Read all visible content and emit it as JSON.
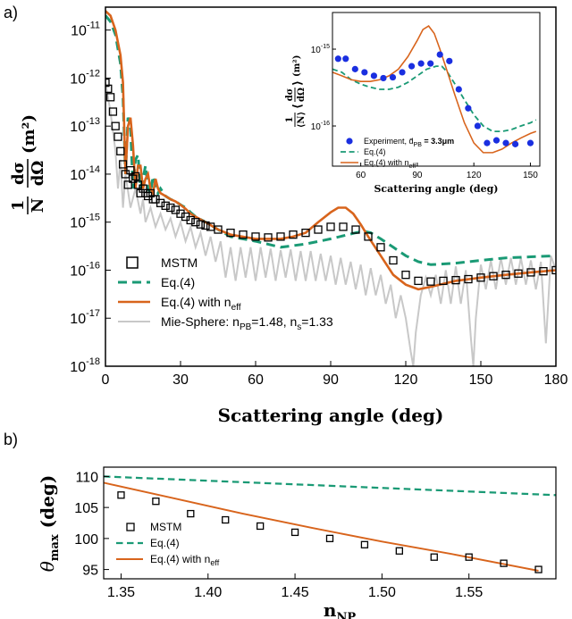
{
  "colors": {
    "mstm": "#000000",
    "eq4": "#1a9a75",
    "eq4_neff": "#d8641c",
    "mie": "#c8c8c8",
    "experiment": "#1a2fe0"
  },
  "panel_labels": [
    "a)",
    "b)"
  ],
  "chart_data": [
    {
      "panel": "a)",
      "type": "line",
      "y_scale": "log",
      "xlabel": "Scattering angle (deg)",
      "ylabel": "1 dσ / N dΩ (m²)",
      "xlim": [
        0,
        180
      ],
      "ylim": [
        1e-18,
        3e-11
      ],
      "xticks": [
        "0",
        "30",
        "60",
        "90",
        "120",
        "150",
        "180"
      ],
      "yticks": [
        {
          "base": "10",
          "exp": "-11",
          "value": 1e-11
        },
        {
          "base": "10",
          "exp": "-12",
          "value": 1e-12
        },
        {
          "base": "10",
          "exp": "-13",
          "value": 1e-13
        },
        {
          "base": "10",
          "exp": "-14",
          "value": 1e-14
        },
        {
          "base": "10",
          "exp": "-15",
          "value": 1e-15
        },
        {
          "base": "10",
          "exp": "-16",
          "value": 1e-16
        },
        {
          "base": "10",
          "exp": "-17",
          "value": 1e-17
        },
        {
          "base": "10",
          "exp": "-18",
          "value": 1e-18
        }
      ],
      "legend": {
        "position": "bottom-left",
        "entries": [
          {
            "label": "MSTM",
            "style": "square-marker"
          },
          {
            "label": "Eq.(4)",
            "style": "dashed"
          },
          {
            "label": "Eq.(4) with n",
            "sub": "eff",
            "style": "solid"
          },
          {
            "label": "Mie-Sphere: n",
            "sub": "PB",
            "rest": "=1.48, n",
            "sub2": "s",
            "rest2": "=1.33",
            "style": "gray"
          }
        ]
      },
      "series": [
        {
          "name": "MSTM",
          "style": "marker",
          "x": [
            0,
            1,
            2,
            3,
            4,
            5,
            6,
            7,
            8,
            9,
            10,
            11,
            12,
            13,
            14,
            15,
            16,
            17,
            18,
            19,
            20,
            22,
            24,
            26,
            28,
            30,
            32,
            34,
            36,
            38,
            40,
            42,
            45,
            50,
            55,
            60,
            65,
            70,
            75,
            80,
            85,
            90,
            95,
            100,
            105,
            110,
            115,
            120,
            125,
            130,
            135,
            140,
            145,
            150,
            155,
            160,
            165,
            170,
            175,
            180
          ],
          "y": [
            8e-13,
            6e-13,
            4e-13,
            2e-13,
            1e-13,
            6e-14,
            3e-14,
            1.6e-14,
            1e-14,
            6e-15,
            1.2e-14,
            8e-15,
            9e-15,
            6e-15,
            4e-15,
            5e-15,
            4e-15,
            3.5e-15,
            4e-15,
            3e-15,
            3e-15,
            2.5e-15,
            2.2e-15,
            2e-15,
            1.8e-15,
            1.5e-15,
            1.3e-15,
            1.1e-15,
            1e-15,
            9e-16,
            8.5e-16,
            8e-16,
            7e-16,
            6e-16,
            5.5e-16,
            5e-16,
            4.8e-16,
            5e-16,
            5.5e-16,
            6e-16,
            7e-16,
            8e-16,
            8e-16,
            7e-16,
            5e-16,
            3e-16,
            1.6e-16,
            8e-17,
            6e-17,
            5.8e-17,
            6e-17,
            6.2e-17,
            6.5e-17,
            7e-17,
            7.5e-17,
            8e-17,
            8.5e-17,
            9e-17,
            9.5e-17,
            1e-16
          ]
        },
        {
          "name": "Eq.(4)",
          "style": "dashed",
          "x": [
            0,
            2,
            4,
            6,
            7,
            8,
            9,
            10,
            11,
            12,
            13,
            14,
            15,
            16,
            17,
            18,
            19,
            20,
            21,
            22,
            24,
            26,
            28,
            30,
            32,
            34,
            36,
            40,
            45,
            50,
            60,
            70,
            80,
            90,
            100,
            103,
            106,
            110,
            115,
            120,
            125,
            130,
            140,
            150,
            160,
            170,
            180
          ],
          "y": [
            2e-11,
            1.5e-11,
            8e-12,
            2e-12,
            4e-13,
            1e-14,
            1.5e-13,
            1e-13,
            5e-15,
            2e-14,
            2.5e-14,
            5e-15,
            8e-15,
            1.5e-14,
            5e-15,
            4e-15,
            9e-15,
            6e-15,
            4e-15,
            5e-15,
            3.5e-15,
            3e-15,
            2.7e-15,
            2.3e-15,
            2e-15,
            1.6e-15,
            1.3e-15,
            1e-15,
            7e-16,
            5e-16,
            4e-16,
            3e-16,
            3.5e-16,
            4.5e-16,
            6e-16,
            6.5e-16,
            6e-16,
            4.5e-16,
            3e-16,
            2e-16,
            1.5e-16,
            1.3e-16,
            1.4e-16,
            1.6e-16,
            1.8e-16,
            1.9e-16,
            2e-16
          ]
        },
        {
          "name": "Eq.(4) with n_eff",
          "style": "solid",
          "x": [
            0,
            2,
            4,
            6,
            7,
            8,
            9,
            10,
            11,
            12,
            13,
            14,
            15,
            16,
            17,
            18,
            19,
            20,
            21,
            22,
            24,
            26,
            28,
            30,
            32,
            34,
            36,
            40,
            45,
            50,
            60,
            70,
            75,
            80,
            85,
            90,
            93,
            96,
            99,
            102,
            105,
            110,
            115,
            120,
            125,
            130,
            140,
            150,
            160,
            170,
            180
          ],
          "y": [
            2.5e-11,
            2e-11,
            1e-11,
            3e-12,
            8e-13,
            1e-14,
            1e-13,
            1.5e-13,
            4e-14,
            5e-15,
            1.5e-14,
            1.5e-14,
            5e-15,
            8e-15,
            1e-14,
            5e-15,
            4e-15,
            8e-15,
            5e-15,
            4e-15,
            3.5e-15,
            3e-15,
            2.7e-15,
            2.3e-15,
            1.9e-15,
            1.5e-15,
            1.3e-15,
            1e-15,
            7e-16,
            5.5e-16,
            4.5e-16,
            4.5e-16,
            5e-16,
            6e-16,
            1e-15,
            1.6e-15,
            2e-15,
            2e-15,
            1.5e-15,
            9e-16,
            5e-16,
            2e-16,
            8e-17,
            5e-17,
            4e-17,
            4.5e-17,
            6e-17,
            7e-17,
            8e-17,
            9e-17,
            1e-16
          ]
        },
        {
          "name": "Mie-Sphere",
          "style": "gray",
          "x": [
            0,
            2,
            4,
            5,
            6,
            7,
            8,
            10,
            12,
            14,
            15,
            16,
            18,
            20,
            22,
            24,
            26,
            28,
            30,
            32,
            34,
            36,
            38,
            40,
            42,
            44,
            46,
            48,
            50,
            52,
            54,
            56,
            58,
            60,
            62,
            64,
            66,
            68,
            70,
            72,
            74,
            76,
            78,
            80,
            82,
            84,
            86,
            88,
            90,
            92,
            94,
            96,
            98,
            100,
            102,
            104,
            106,
            108,
            110,
            112,
            114,
            116,
            118,
            120,
            122,
            123,
            124,
            126,
            128,
            130,
            132,
            134,
            136,
            138,
            140,
            142,
            144,
            146,
            147,
            148,
            150,
            152,
            154,
            156,
            158,
            160,
            162,
            164,
            166,
            168,
            170,
            172,
            174,
            176,
            178,
            180
          ],
          "y": [
            8e-13,
            2e-13,
            3e-14,
            5e-15,
            2e-14,
            2e-15,
            1e-14,
            2e-15,
            5e-15,
            1.5e-15,
            3e-15,
            1e-15,
            2e-15,
            8e-16,
            1.5e-15,
            7e-16,
            1.2e-15,
            5e-16,
            1e-15,
            4e-16,
            8e-16,
            3e-16,
            6e-16,
            2e-16,
            5e-16,
            1.5e-16,
            4e-16,
            7e-17,
            3e-16,
            6e-17,
            3e-16,
            7e-17,
            3e-16,
            6e-17,
            3e-16,
            7e-17,
            2.8e-16,
            6e-17,
            2.6e-16,
            7e-17,
            2.7e-16,
            6e-17,
            2.5e-16,
            6e-17,
            2.5e-16,
            6e-17,
            2.2e-16,
            6e-17,
            2e-16,
            5e-17,
            1.8e-16,
            5e-17,
            1.5e-16,
            4e-17,
            1.3e-16,
            3e-17,
            1.1e-16,
            3e-17,
            8e-17,
            2e-17,
            5e-17,
            1e-17,
            3e-17,
            1e-17,
            2e-18,
            1e-18,
            5e-18,
            3e-17,
            7e-17,
            3e-17,
            8e-17,
            2e-17,
            1e-16,
            2e-17,
            1.2e-16,
            2e-17,
            1e-16,
            4e-18,
            1e-18,
            1e-17,
            1.3e-16,
            4e-17,
            1.6e-16,
            4e-17,
            1.8e-16,
            5e-17,
            1.8e-16,
            5e-17,
            1.8e-16,
            5e-17,
            1.6e-16,
            4e-17,
            1.5e-16,
            3e-18,
            2e-16,
            1e-16
          ]
        }
      ]
    },
    {
      "panel": "a) inset",
      "type": "line",
      "y_scale": "log",
      "xlabel": "Scattering angle (deg)",
      "ylabel": "1/⟨N⟩ ⟨dσ/dΩ⟩ (m²)",
      "xlim": [
        45,
        155
      ],
      "ylim": [
        3e-17,
        3e-15
      ],
      "xticks": [
        "60",
        "90",
        "120",
        "150"
      ],
      "yticks": [
        {
          "base": "10",
          "exp": "-15",
          "value": 1e-15
        },
        {
          "base": "10",
          "exp": "-16",
          "value": 1e-16
        }
      ],
      "legend": {
        "position": "bottom-left",
        "entries": [
          {
            "label": "Experiment,  d̄",
            "sub": "PB",
            "rest": " = 3.3μm",
            "style": "dot"
          },
          {
            "label": "Eq.(4)",
            "style": "dashed"
          },
          {
            "label": "Eq.(4) with n",
            "sub": "eff",
            "style": "solid"
          }
        ]
      },
      "series": [
        {
          "name": "Experiment",
          "style": "dot",
          "x": [
            48,
            52,
            57,
            62,
            67,
            72,
            77,
            82,
            87,
            92,
            97,
            102,
            107,
            112,
            117,
            122,
            127,
            132,
            137,
            142,
            150
          ],
          "y": [
            7.5e-16,
            7.5e-16,
            5.5e-16,
            5e-16,
            4.5e-16,
            4.2e-16,
            4.3e-16,
            5e-16,
            6e-16,
            6.5e-16,
            6.5e-16,
            8.5e-16,
            7e-16,
            3e-16,
            1.7e-16,
            1e-16,
            6e-17,
            6.5e-17,
            6e-17,
            5.8e-17,
            6e-17
          ]
        },
        {
          "name": "Eq.(4)",
          "style": "dashed",
          "x": [
            45,
            50,
            55,
            60,
            65,
            70,
            75,
            80,
            85,
            90,
            95,
            100,
            103,
            106,
            110,
            115,
            120,
            125,
            130,
            135,
            140,
            145,
            150,
            153
          ],
          "y": [
            5.5e-16,
            5e-16,
            4e-16,
            3.5e-16,
            3.2e-16,
            3e-16,
            3e-16,
            3.2e-16,
            3.7e-16,
            4.5e-16,
            5.5e-16,
            6e-16,
            6e-16,
            5e-16,
            3.5e-16,
            2.2e-16,
            1.4e-16,
            1e-16,
            8.5e-17,
            8.5e-17,
            9e-17,
            1e-16,
            1.1e-16,
            1.2e-16
          ]
        },
        {
          "name": "Eq.(4) with n_eff",
          "style": "solid",
          "x": [
            45,
            50,
            55,
            60,
            65,
            70,
            75,
            80,
            85,
            90,
            93,
            96,
            99,
            102,
            105,
            110,
            115,
            120,
            125,
            130,
            135,
            140,
            145,
            150,
            153
          ],
          "y": [
            5e-16,
            4.5e-16,
            4e-16,
            3.8e-16,
            3.8e-16,
            4e-16,
            4.5e-16,
            5.5e-16,
            8e-16,
            1.3e-15,
            1.8e-15,
            2e-15,
            1.6e-15,
            1e-15,
            6e-16,
            2.5e-16,
            1.1e-16,
            6e-17,
            4.5e-17,
            4.5e-17,
            5e-17,
            6e-17,
            7e-17,
            8e-17,
            8.5e-17
          ]
        }
      ]
    },
    {
      "panel": "b)",
      "type": "line",
      "y_scale": "linear",
      "xlabel": "n_NP",
      "ylabel": "θ_max (deg)",
      "xlim": [
        1.34,
        1.6
      ],
      "ylim": [
        93.5,
        111.5
      ],
      "xticks": [
        "1.35",
        "1.40",
        "1.45",
        "1.50",
        "1.55"
      ],
      "yticks": [
        "110",
        "105",
        "100",
        "95"
      ],
      "legend": {
        "position": "bottom-left",
        "entries": [
          {
            "label": "MSTM",
            "style": "square-marker"
          },
          {
            "label": "Eq.(4)",
            "style": "dashed"
          },
          {
            "label": "Eq.(4) with n",
            "sub": "eff",
            "style": "solid"
          }
        ]
      },
      "series": [
        {
          "name": "MSTM",
          "style": "marker",
          "x": [
            1.35,
            1.37,
            1.39,
            1.41,
            1.43,
            1.45,
            1.47,
            1.49,
            1.51,
            1.53,
            1.55,
            1.57,
            1.59
          ],
          "y": [
            107,
            106,
            104,
            103,
            102,
            101,
            100,
            99,
            98,
            97,
            97,
            96,
            95
          ]
        },
        {
          "name": "Eq.(4)",
          "style": "dashed",
          "x": [
            1.34,
            1.6
          ],
          "y": [
            110,
            107
          ]
        },
        {
          "name": "Eq.(4) with n_eff",
          "style": "solid",
          "x": [
            1.34,
            1.38,
            1.42,
            1.46,
            1.5,
            1.54,
            1.59
          ],
          "y": [
            109,
            106.5,
            104,
            101.7,
            99.5,
            97.5,
            94.8
          ]
        }
      ]
    }
  ]
}
